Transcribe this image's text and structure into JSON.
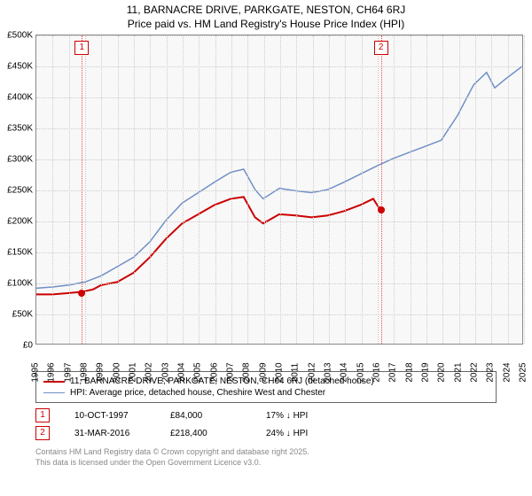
{
  "title_line1": "11, BARNACRE DRIVE, PARKGATE, NESTON, CH64 6RJ",
  "title_line2": "Price paid vs. HM Land Registry's House Price Index (HPI)",
  "chart": {
    "type": "line",
    "background_color": "#f8f8f8",
    "grid_color": "#cccccc",
    "border_color": "#888888",
    "ylim": [
      0,
      500000
    ],
    "ytick_step": 50000,
    "ytick_labels": [
      "£0",
      "£50K",
      "£100K",
      "£150K",
      "£200K",
      "£250K",
      "£300K",
      "£350K",
      "£400K",
      "£450K",
      "£500K"
    ],
    "xlim": [
      1995,
      2025
    ],
    "xtick_step": 1,
    "xtick_labels": [
      "1995",
      "1996",
      "1997",
      "1998",
      "1999",
      "2000",
      "2001",
      "2002",
      "2003",
      "2004",
      "2005",
      "2006",
      "2007",
      "2008",
      "2009",
      "2010",
      "2011",
      "2012",
      "2013",
      "2014",
      "2015",
      "2016",
      "2017",
      "2018",
      "2019",
      "2020",
      "2021",
      "2022",
      "2023",
      "2024",
      "2025"
    ],
    "series": [
      {
        "name": "property",
        "color": "#cc0000",
        "width": 2,
        "data": [
          [
            1995,
            80000
          ],
          [
            1996,
            80000
          ],
          [
            1997,
            82000
          ],
          [
            1997.8,
            84000
          ],
          [
            1998.5,
            88000
          ],
          [
            1999,
            95000
          ],
          [
            2000,
            100000
          ],
          [
            2001,
            115000
          ],
          [
            2002,
            140000
          ],
          [
            2003,
            170000
          ],
          [
            2004,
            195000
          ],
          [
            2005,
            210000
          ],
          [
            2006,
            225000
          ],
          [
            2007,
            235000
          ],
          [
            2007.8,
            238000
          ],
          [
            2008.5,
            205000
          ],
          [
            2009,
            195000
          ],
          [
            2010,
            210000
          ],
          [
            2011,
            208000
          ],
          [
            2012,
            205000
          ],
          [
            2013,
            208000
          ],
          [
            2014,
            215000
          ],
          [
            2015,
            225000
          ],
          [
            2015.8,
            235000
          ],
          [
            2016.2,
            218400
          ]
        ]
      },
      {
        "name": "hpi",
        "color": "#6f8fc6",
        "width": 1.5,
        "data": [
          [
            1995,
            90000
          ],
          [
            1996,
            92000
          ],
          [
            1997,
            95000
          ],
          [
            1998,
            100000
          ],
          [
            1999,
            110000
          ],
          [
            2000,
            125000
          ],
          [
            2001,
            140000
          ],
          [
            2002,
            165000
          ],
          [
            2003,
            200000
          ],
          [
            2004,
            228000
          ],
          [
            2005,
            245000
          ],
          [
            2006,
            262000
          ],
          [
            2007,
            278000
          ],
          [
            2007.8,
            283000
          ],
          [
            2008.5,
            250000
          ],
          [
            2009,
            235000
          ],
          [
            2010,
            252000
          ],
          [
            2011,
            248000
          ],
          [
            2012,
            245000
          ],
          [
            2013,
            250000
          ],
          [
            2014,
            262000
          ],
          [
            2015,
            275000
          ],
          [
            2016,
            288000
          ],
          [
            2017,
            300000
          ],
          [
            2018,
            310000
          ],
          [
            2019,
            320000
          ],
          [
            2020,
            330000
          ],
          [
            2021,
            370000
          ],
          [
            2022,
            420000
          ],
          [
            2022.8,
            440000
          ],
          [
            2023.3,
            415000
          ],
          [
            2024,
            430000
          ],
          [
            2025,
            450000
          ]
        ]
      }
    ],
    "markers": [
      {
        "n": "1",
        "x": 1997.8,
        "y": 84000
      },
      {
        "n": "2",
        "x": 2016.2,
        "y": 218400
      }
    ]
  },
  "legend": {
    "items": [
      {
        "color": "#cc0000",
        "width": 2,
        "label": "11, BARNACRE DRIVE, PARKGATE, NESTON, CH64 6RJ (detached house)"
      },
      {
        "color": "#6f8fc6",
        "width": 1.5,
        "label": "HPI: Average price, detached house, Cheshire West and Chester"
      }
    ]
  },
  "sales": [
    {
      "n": "1",
      "date": "10-OCT-1997",
      "price": "£84,000",
      "pct": "17% ↓ HPI"
    },
    {
      "n": "2",
      "date": "31-MAR-2016",
      "price": "£218,400",
      "pct": "24% ↓ HPI"
    }
  ],
  "footer_line1": "Contains HM Land Registry data © Crown copyright and database right 2025.",
  "footer_line2": "This data is licensed under the Open Government Licence v3.0."
}
